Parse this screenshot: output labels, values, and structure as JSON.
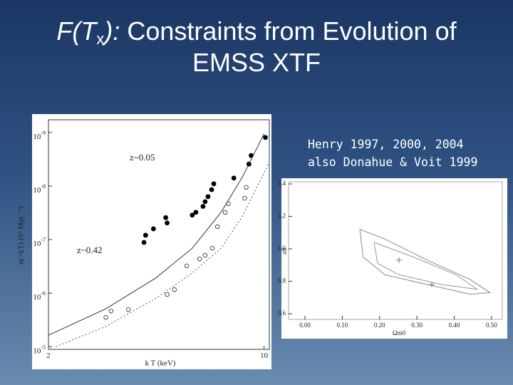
{
  "title": {
    "italic": "F(T",
    "subscript": "x",
    "italic_end": "):",
    "line1": "Constraints from Evolution of",
    "line2": "EMSS XTF"
  },
  "caption": [
    "Henry 1997, 2000, 2004",
    "also Donahue & Voit 1999"
  ],
  "chart_data": [
    {
      "type": "scatter",
      "log_x": true,
      "log_y": true,
      "x_label": "k T (keV)",
      "y_label": "n(>kT) (h³ Mpc⁻³)",
      "xlim": [
        2,
        10.4
      ],
      "xticks": [
        2,
        10
      ],
      "ylim": [
        1.12e-05,
        5.8e-10
      ],
      "yticks": [
        {
          "value": 1e-05,
          "label": "10",
          "exponent": "-5"
        },
        {
          "value": 1e-06,
          "label": "10",
          "exponent": "-6"
        },
        {
          "value": 1e-07,
          "label": "10",
          "exponent": "-7"
        },
        {
          "value": 1e-08,
          "label": "10",
          "exponent": "-8"
        },
        {
          "value": 1e-09,
          "label": "10",
          "exponent": "-9"
        }
      ],
      "series": [
        {
          "name": "z~0.05",
          "marker": "open",
          "color": "#222222",
          "x": [
            3.07,
            3.19,
            3.63,
            4.85,
            5.12,
            5.61,
            6.18,
            6.44,
            6.8,
            7.06,
            7.48,
            7.66,
            8.65,
            8.75
          ],
          "values": [
            2.84e-06,
            2.15e-06,
            2.03e-06,
            1.06e-06,
            8.6e-07,
            3.1e-07,
            2.3e-07,
            1.96e-07,
            1.45e-07,
            5.75e-08,
            3.1e-08,
            2.15e-08,
            1.69e-08,
            1.06e-08
          ]
        },
        {
          "name": "z~0.42",
          "marker": "filled",
          "color": "#000000",
          "x": [
            4.08,
            4.13,
            4.38,
            4.85,
            4.8,
            5.85,
            6.01,
            6.34,
            6.44,
            6.58,
            6.76,
            6.87,
            7.98,
            8.93,
            9.08,
            10.1
          ],
          "values": [
            1.13e-07,
            8.3e-08,
            6.3e-08,
            4.9e-08,
            3.9e-08,
            3.5e-08,
            3.1e-08,
            2.4e-08,
            1.96e-08,
            1.58e-08,
            1.17e-08,
            9.1e-09,
            7.1e-09,
            3.9e-09,
            2.7e-09,
            1.24e-09
          ]
        },
        {
          "marker": "line",
          "color": "#333333",
          "x": [
            2.0,
            3.07,
            4.46,
            5.85,
            7.25,
            8.52,
            10.0
          ],
          "values": [
            6.1e-06,
            1.96e-06,
            5.2e-07,
            1.45e-07,
            3.1e-08,
            6.7e-09,
            1.06e-09
          ]
        },
        {
          "marker": "line",
          "dash": true,
          "color": "#555555",
          "x": [
            2.11,
            3.07,
            4.46,
            5.85,
            7.25,
            8.52,
            10.4
          ],
          "values": [
            1e-05,
            4.2e-06,
            1.24e-06,
            4.2e-07,
            1.45e-07,
            3.6e-08,
            3.6e-09
          ]
        }
      ]
    },
    {
      "type": "contour",
      "log_x": false,
      "log_y": false,
      "x_label": "Ωm0",
      "y_label": "σ8",
      "xlim": [
        -0.044,
        0.529
      ],
      "xticks": [
        {
          "value": 0,
          "label": "0.00"
        },
        {
          "value": 0.1,
          "label": "0.10"
        },
        {
          "value": 0.2,
          "label": "0.20"
        },
        {
          "value": 0.3,
          "label": "0.30"
        },
        {
          "value": 0.4,
          "label": "0.40"
        },
        {
          "value": 0.5,
          "label": "0.50"
        }
      ],
      "ylim": [
        0.565,
        1.413
      ],
      "yticks": [
        0.6,
        0.8,
        {
          "value": 1.0,
          "label": "1.0"
        },
        1.2,
        1.4
      ],
      "series": [
        {
          "marker": "line",
          "color": "#888888",
          "x": [
            0.147,
            0.214,
            0.328,
            0.443,
            0.496,
            0.443,
            0.328,
            0.214,
            0.156,
            0.147
          ],
          "values": [
            1.12,
            1.06,
            0.93,
            0.81,
            0.73,
            0.72,
            0.78,
            0.84,
            0.95,
            1.12
          ]
        },
        {
          "marker": "line",
          "color": "#999999",
          "x": [
            0.185,
            0.29,
            0.405,
            0.462,
            0.366,
            0.252,
            0.195,
            0.185
          ],
          "values": [
            1.04,
            0.95,
            0.84,
            0.75,
            0.78,
            0.84,
            0.91,
            1.04
          ]
        },
        {
          "marker": "cross",
          "color": "#777777",
          "x": [
            0.252,
            0.34
          ],
          "values": [
            0.93,
            0.78
          ]
        }
      ]
    }
  ]
}
